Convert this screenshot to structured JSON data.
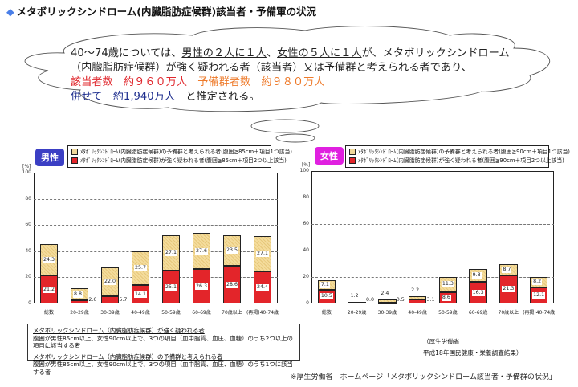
{
  "title": "メタボリックシンドローム(内臓脂肪症候群)該当者・予備軍の状況",
  "title_icon": "diamond-icon",
  "summary": {
    "line1_pre": "40～74歳については、",
    "line1_male": "男性の２人に１人",
    "line1_mid": "、",
    "line1_female": "女性の５人に１人",
    "line1_post": "が、メタボリックシンドローム",
    "line2": "（内臓脂肪症候群）が強く疑われる者（該当者）又は予備群と考えられる者であり、",
    "line3_red": "該当者数　約９６０万人",
    "line3_orange": "予備群者数　約９８０万人",
    "line4_navy": "併せて　約1,940万人",
    "line4_post": "と推定される。"
  },
  "colors": {
    "metabolic": "#e3252a",
    "preliminary": "#f0d89a",
    "male_badge": "#3b3fc4",
    "female_badge": "#e020e0",
    "highlight_red": "#e0282e",
    "highlight_orange": "#ee7a2a",
    "highlight_navy": "#1f2f8f"
  },
  "charts": {
    "male": {
      "badge": "男性",
      "legend_pre": "ﾒﾀﾎﾞﾘｯｸｼﾝﾄﾞﾛｰﾑ(内臓脂肪症候群)の予備群と考えられる者(腹囲≧85cm＋項目1つ該当)",
      "legend_met": "ﾒﾀﾎﾞﾘｯｸｼﾝﾄﾞﾛｰﾑ(内臓脂肪症候群)が強く疑われる者(腹囲≧85cm＋項目2つ以上該当)",
      "unit": "[%]",
      "ticks": [
        "100",
        "80",
        "60",
        "40",
        "20",
        "0"
      ]
    },
    "female": {
      "badge": "女性",
      "legend_pre": "ﾒﾀﾎﾞﾘｯｸｼﾝﾄﾞﾛｰﾑ(内臓脂肪症候群)の予備群と考えられる者(腹囲≧90cm＋項目1つ該当)",
      "legend_met": "ﾒﾀﾎﾞﾘｯｸｼﾝﾄﾞﾛｰﾑ(内臓脂肪症候群)が強く疑われる者(腹囲≧90cm＋項目2つ以上該当)",
      "unit": "[%]",
      "ticks": [
        "100",
        "80",
        "60",
        "40",
        "20",
        "0"
      ]
    }
  },
  "definitions": {
    "h1": "メタボリックシンドローム（内臓脂肪症候群）が強く疑われる者",
    "t1": "腹囲が男性85cm以上、女性90cm以上で、3つの項目（血中脂質、血圧、血糖）のうち2つ以上の項目に該当する者",
    "h2": "メタボリックシンドローム（内臓脂肪症候群）の予備群と考えられる者",
    "t2": "腹囲が男性85cm以上、女性90cm以上で、3つの項目（血中脂質、血圧、血糖）のうち1つに該当する者"
  },
  "source": {
    "line1": "（厚生労働省",
    "line2": "平成18年国民健康・栄養調査結果）"
  },
  "footnote": "※厚生労働省　ホームページ「メタボリックシンドローム該当者・予備群の状況」",
  "chart_data": [
    {
      "type": "bar",
      "stacked": true,
      "title": "男性",
      "categories": [
        "総数",
        "20-29歳",
        "30-39歳",
        "40-49歳",
        "50-59歳",
        "60-69歳",
        "70歳以上",
        "(再掲)40-74歳"
      ],
      "series": [
        {
          "name": "メタボリックシンドローム(内臓脂肪症候群)が強く疑われる者(腹囲≧85cm＋項目2つ以上該当)",
          "values": [
            21.2,
            2.6,
            5.7,
            14.1,
            25.1,
            26.3,
            28.6,
            24.4
          ]
        },
        {
          "name": "メタボリックシンドローム(内臓脂肪症候群)の予備群と考えられる者(腹囲≧85cm＋項目1つ該当)",
          "values": [
            24.3,
            8.8,
            22.0,
            25.7,
            27.1,
            27.6,
            23.5,
            27.1
          ]
        }
      ],
      "xlabel": "",
      "ylabel": "[%]",
      "ylim": [
        0,
        100
      ],
      "yticks": [
        0,
        20,
        40,
        60,
        80,
        100
      ],
      "grid": true,
      "legend_position": "top"
    },
    {
      "type": "bar",
      "stacked": true,
      "title": "女性",
      "categories": [
        "総数",
        "20-29歳",
        "30-39歳",
        "40-49歳",
        "50-59歳",
        "60-69歳",
        "70歳以上",
        "(再掲)40-74歳"
      ],
      "series": [
        {
          "name": "メタボリックシンドローム(内臓脂肪症候群)が強く疑われる者(腹囲≧90cm＋項目2つ以上該当)",
          "values": [
            10.5,
            0.0,
            0.5,
            3.1,
            8.6,
            16.3,
            21.3,
            12.1
          ]
        },
        {
          "name": "メタボリックシンドローム(内臓脂肪症候群)の予備群と考えられる者(腹囲≧90cm＋項目1つ該当)",
          "values": [
            7.1,
            1.2,
            2.4,
            2.2,
            11.3,
            9.8,
            8.7,
            8.2
          ]
        }
      ],
      "xlabel": "",
      "ylabel": "[%]",
      "ylim": [
        0,
        100
      ],
      "yticks": [
        0,
        20,
        40,
        60,
        80,
        100
      ],
      "grid": true,
      "legend_position": "top"
    }
  ]
}
